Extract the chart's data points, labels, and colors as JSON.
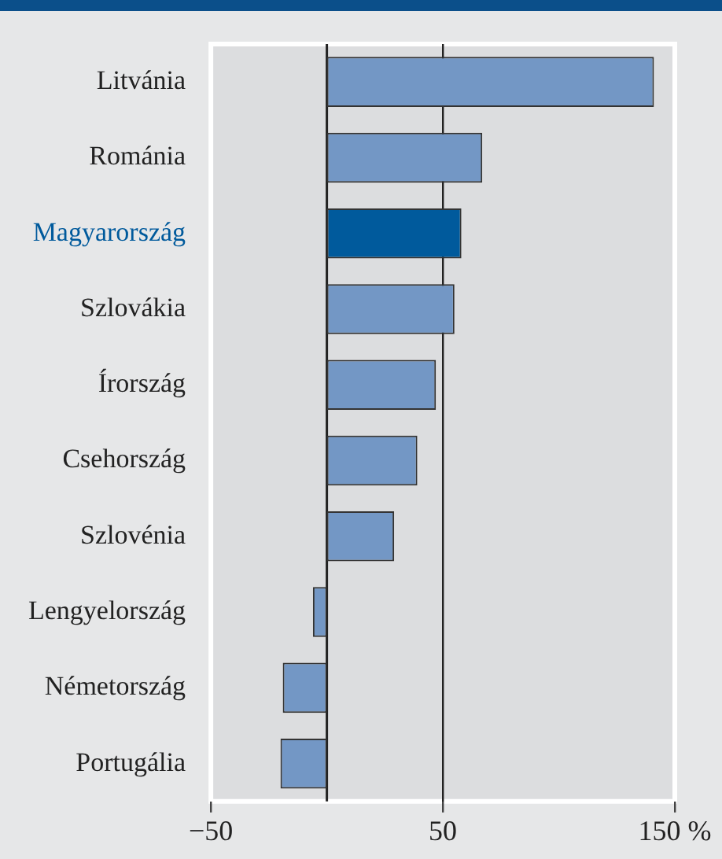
{
  "chart_data": {
    "type": "bar",
    "orientation": "horizontal",
    "categories": [
      "Litvánia",
      "Románia",
      "Magyarország",
      "Szlovákia",
      "Írország",
      "Csehország",
      "Szlovénia",
      "Lengyelország",
      "Németország",
      "Portugália"
    ],
    "values": [
      141,
      67,
      58,
      55,
      47,
      39,
      29,
      -6,
      -19,
      -20
    ],
    "colors": [
      "#7397c5",
      "#7397c5",
      "#005a9c",
      "#7397c5",
      "#7397c5",
      "#7397c5",
      "#7397c5",
      "#7397c5",
      "#7397c5",
      "#7397c5"
    ],
    "xlim": [
      -50,
      150
    ],
    "xticks": [
      {
        "value": -50,
        "label": "−50"
      },
      50,
      {
        "value": 150,
        "label": "150 %"
      }
    ],
    "grid": "x"
  }
}
